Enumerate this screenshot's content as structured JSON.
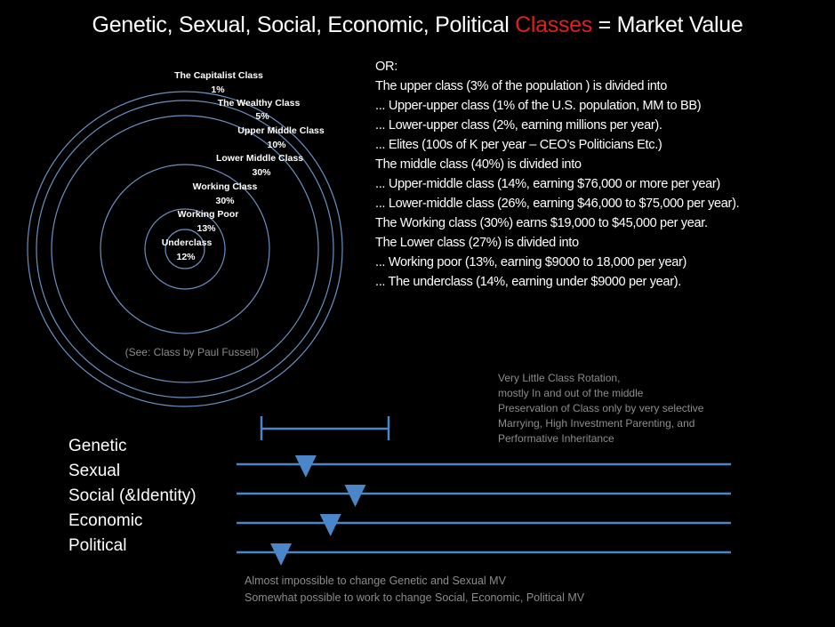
{
  "title": {
    "prefix": "Genetic, Sexual, Social, Economic, Political ",
    "accent": "Classes",
    "suffix": " = Market Value",
    "accent_color": "#e0201b"
  },
  "circle_diagram": {
    "labels": [
      {
        "name": "The Capitalist Class",
        "pct": "1%"
      },
      {
        "name": "The Wealthy Class",
        "pct": "5%"
      },
      {
        "name": "Upper Middle Class",
        "pct": "10%"
      },
      {
        "name": "Lower Middle Class",
        "pct": "30%"
      },
      {
        "name": "Working Class",
        "pct": "30%"
      },
      {
        "name": "Working Poor",
        "pct": "13%"
      },
      {
        "name": "Underclass",
        "pct": "12%"
      }
    ],
    "source": "(See: Class by Paul Fussell)",
    "ring_color": "#6b8fc0"
  },
  "info_lines": [
    "OR:",
    "The upper class (3% of the population ) is divided into",
    "... Upper-upper class (1% of the U.S. population, MM to BB)",
    "... Lower-upper class (2%, earning millions per year).",
    "... Elites (100s of K per year – CEO’s Politicians Etc.)",
    "The middle class (40%) is divided into",
    "... Upper-middle class (14%, earning $76,000 or more per year)",
    "... Lower-middle class (26%, earning $46,000 to $75,000 per year).",
    "The Working class (30%) earns $19,000 to $45,000 per year.",
    "The Lower class (27%) is divided into",
    "... Working poor (13%, earning $9000 to 18,000 per year)",
    "... The underclass (14%, earning under $9000 per year)."
  ],
  "note_lines": [
    "Very Little Class Rotation,",
    "mostly In and out of the middle",
    "Preservation of Class only by very selective",
    "Marrying, High Investment Parenting, and",
    "Performative Inheritance"
  ],
  "dimensions": [
    "Genetic",
    "Sexual",
    "Social (&Identity)",
    "Economic",
    "Political"
  ],
  "scales": {
    "marker_positions": [
      0.14,
      0.24,
      0.19,
      0.09
    ],
    "color": "#4a86c8"
  },
  "bottom_lines": [
    "Almost impossible to change Genetic and Sexual MV",
    "Somewhat possible to work to change Social, Economic, Political MV"
  ]
}
